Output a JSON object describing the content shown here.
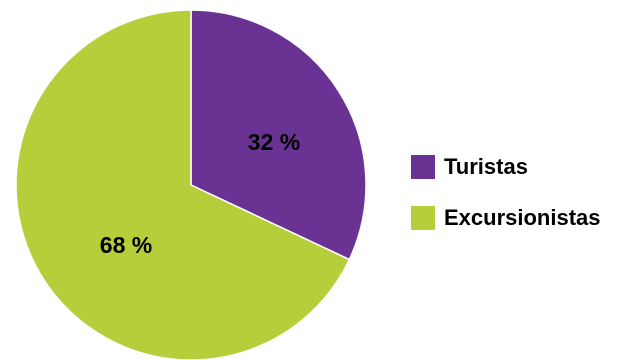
{
  "chart_data": {
    "type": "pie",
    "categories": [
      "Turistas",
      "Excursionistas"
    ],
    "values": [
      32,
      68
    ],
    "data_labels": [
      "32 %",
      "68 %"
    ],
    "colors": [
      "#6A3393",
      "#B5CE3A"
    ],
    "legend_position": "right",
    "title": ""
  }
}
